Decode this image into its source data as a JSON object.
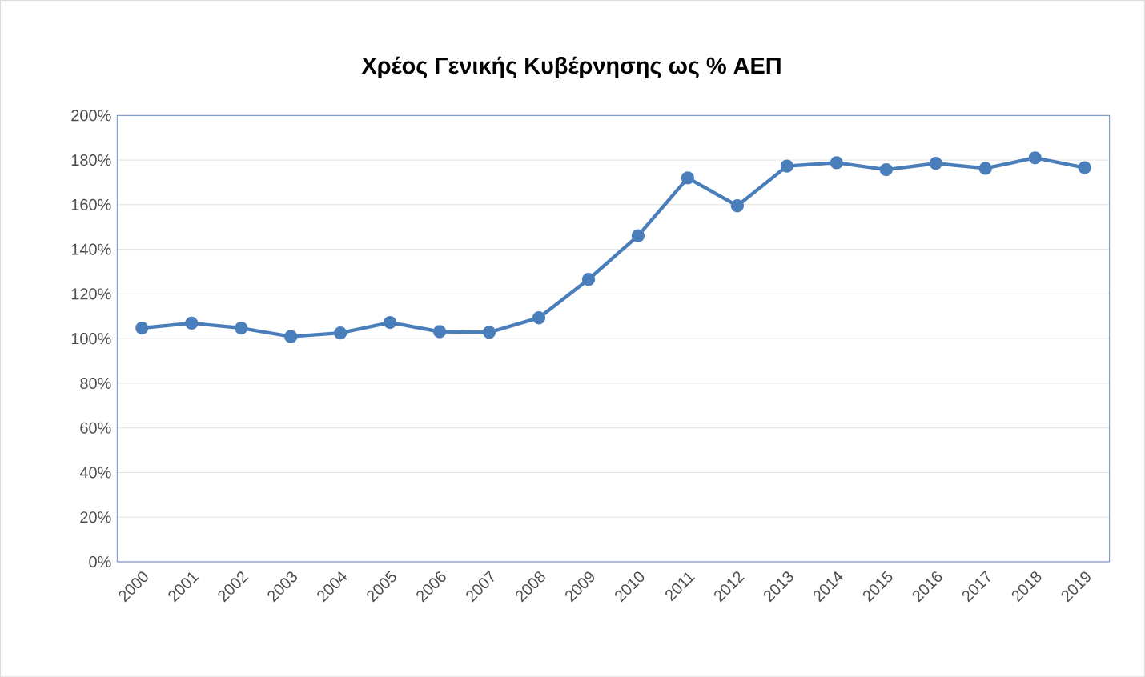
{
  "chart_data": {
    "type": "line",
    "title": "Χρέος Γενικής Κυβέρνησης ως % ΑΕΠ",
    "categories": [
      "2000",
      "2001",
      "2002",
      "2003",
      "2004",
      "2005",
      "2006",
      "2007",
      "2008",
      "2009",
      "2010",
      "2011",
      "2012",
      "2013",
      "2014",
      "2015",
      "2016",
      "2017",
      "2018",
      "2019"
    ],
    "series": [
      {
        "color": "#4a7ebb",
        "values": [
          104.7,
          106.9,
          104.7,
          100.9,
          102.5,
          107.2,
          103.1,
          102.8,
          109.3,
          126.5,
          146.1,
          172.0,
          159.5,
          177.3,
          178.8,
          175.7,
          178.5,
          176.3,
          181.0,
          176.6
        ]
      }
    ],
    "ylim": [
      0,
      200
    ],
    "yticks": [
      {
        "value": 0,
        "label": "0%"
      },
      {
        "value": 20,
        "label": "20%"
      },
      {
        "value": 40,
        "label": "40%"
      },
      {
        "value": 60,
        "label": "60%"
      },
      {
        "value": 80,
        "label": "80%"
      },
      {
        "value": 100,
        "label": "100%"
      },
      {
        "value": 120,
        "label": "120%"
      },
      {
        "value": 140,
        "label": "140%"
      },
      {
        "value": 160,
        "label": "160%"
      },
      {
        "value": 180,
        "label": "180%"
      },
      {
        "value": 200,
        "label": "200%"
      }
    ],
    "grid": "y",
    "marker": "circle",
    "line_style": "solid"
  }
}
